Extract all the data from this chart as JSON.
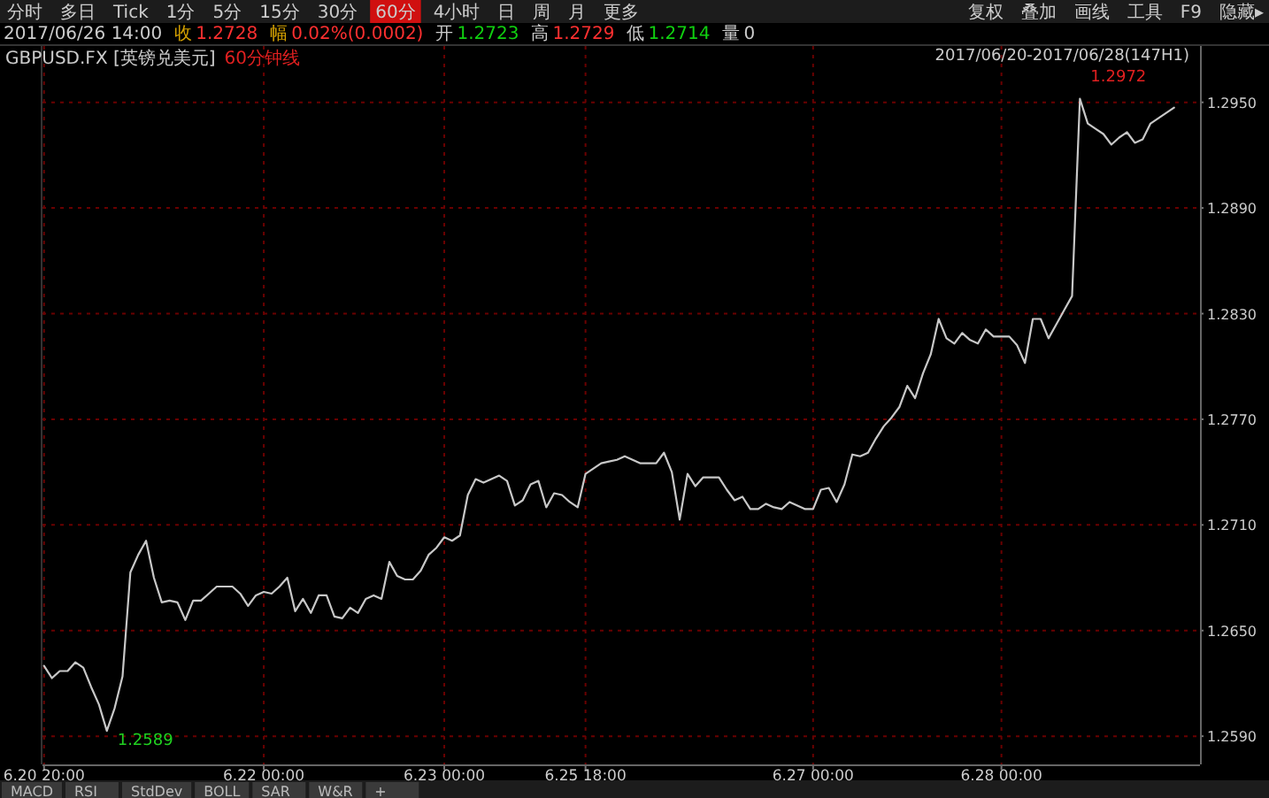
{
  "chart_data": {
    "type": "line",
    "title": "GBPUSD.FX [英镑兑美元]",
    "subtitle": "60分钟线",
    "annotations": [
      "1.2972",
      "1.2589",
      "2017/06/20-2017/06/28(147H1)",
      "分时",
      "多日",
      "Tick",
      "1分",
      "5分",
      "15分",
      "30分",
      "60分",
      "4小时",
      "日",
      "周",
      "月",
      "更多",
      "复权",
      "叠加",
      "画线",
      "工具",
      "F9",
      "隐藏▸",
      "2017/06/26 14:00",
      "收",
      "1.2728",
      "幅",
      "0.02%(0.0002)",
      "开",
      "1.2723",
      "高",
      "1.2729",
      "低",
      "1.2714",
      "量",
      "0",
      "MACD",
      "RSI",
      "StdDev",
      "BOLL",
      "SAR",
      "W&R",
      "+"
    ],
    "categories": [
      "6.20 20:00",
      null,
      null,
      null,
      null,
      null,
      null,
      null,
      null,
      null,
      null,
      null,
      null,
      null,
      null,
      null,
      null,
      null,
      null,
      null,
      null,
      null,
      null,
      null,
      null,
      null,
      null,
      null,
      "6.22 00:00",
      null,
      null,
      null,
      null,
      null,
      null,
      null,
      null,
      null,
      null,
      null,
      null,
      null,
      null,
      null,
      null,
      null,
      null,
      null,
      null,
      null,
      null,
      "6.23 00:00",
      null,
      null,
      null,
      null,
      null,
      null,
      null,
      null,
      null,
      null,
      null,
      null,
      null,
      null,
      null,
      null,
      null,
      "6.25 18:00",
      null,
      null,
      null,
      null,
      null,
      null,
      null,
      null,
      null,
      null,
      null,
      null,
      null,
      null,
      null,
      null,
      null,
      null,
      null,
      null,
      null,
      null,
      null,
      null,
      null,
      null,
      null,
      null,
      "6.27 00:00",
      null,
      null,
      null,
      null,
      null,
      null,
      null,
      null,
      null,
      null,
      null,
      null,
      null,
      null,
      null,
      null,
      null,
      null,
      null,
      null,
      null,
      null,
      null,
      "6.28 00:00",
      null,
      null,
      null,
      null,
      null,
      null,
      null,
      null,
      null,
      null,
      null,
      null,
      null,
      null,
      null,
      null,
      null,
      null,
      null,
      null,
      null,
      null
    ],
    "ylim": [
      1.2574,
      1.2982
    ],
    "yticks": [
      {
        "value": 1.259,
        "label": "1.2590"
      },
      {
        "value": 1.265,
        "label": "1.2650"
      },
      {
        "value": 1.271,
        "label": "1.2710"
      },
      {
        "value": 1.277,
        "label": "1.2770"
      },
      {
        "value": 1.283,
        "label": "1.2830"
      },
      {
        "value": 1.289,
        "label": "1.2890"
      },
      {
        "value": 1.295,
        "label": "1.2950"
      }
    ],
    "grid": true,
    "series": [
      {
        "color": "#c8c8c8",
        "values": [
          1.263,
          1.2623,
          1.2627,
          1.2627,
          1.2632,
          1.2629,
          1.2618,
          1.2608,
          1.2593,
          1.2606,
          1.2624,
          1.2683,
          1.2693,
          1.2701,
          1.268,
          1.2666,
          1.2667,
          1.2666,
          1.2656,
          1.2667,
          1.2667,
          1.2671,
          1.2675,
          1.2675,
          1.2675,
          1.2671,
          1.2664,
          1.267,
          1.2672,
          1.2671,
          1.2675,
          1.268,
          1.2661,
          1.2668,
          1.266,
          1.267,
          1.267,
          1.2658,
          1.2657,
          1.2663,
          1.266,
          1.2668,
          1.267,
          1.2668,
          1.2689,
          1.2681,
          1.2679,
          1.2679,
          1.2684,
          1.2693,
          1.2697,
          1.2703,
          1.2701,
          1.2704,
          1.2727,
          1.2736,
          1.2734,
          1.2736,
          1.2738,
          1.2735,
          1.2721,
          1.2724,
          1.2733,
          1.2735,
          1.272,
          1.2728,
          1.2727,
          1.2723,
          1.272,
          1.2739,
          1.2742,
          1.2745,
          1.2746,
          1.2747,
          1.2749,
          1.2747,
          1.2745,
          1.2745,
          1.2745,
          1.2751,
          1.274,
          1.2713,
          1.2739,
          1.2732,
          1.2737,
          1.2737,
          1.2737,
          1.273,
          1.2724,
          1.2726,
          1.2719,
          1.2719,
          1.2722,
          1.272,
          1.2719,
          1.2723,
          1.2721,
          1.2719,
          1.2719,
          1.273,
          1.2731,
          1.2723,
          1.2733,
          1.275,
          1.2749,
          1.2751,
          1.2759,
          1.2766,
          1.2771,
          1.2777,
          1.2789,
          1.2782,
          1.2796,
          1.2807,
          1.2827,
          1.2816,
          1.2813,
          1.2819,
          1.2815,
          1.2813,
          1.2821,
          1.2817,
          1.2817,
          1.2817,
          1.2812,
          1.2802,
          1.2827,
          1.2827,
          1.2816,
          1.2824,
          1.2832,
          1.284,
          1.2952,
          1.2938,
          1.2935,
          1.2932,
          1.2926,
          1.293,
          1.2933,
          1.2927,
          1.2929,
          1.2938,
          1.2941,
          1.2944,
          1.2947
        ]
      }
    ]
  }
}
